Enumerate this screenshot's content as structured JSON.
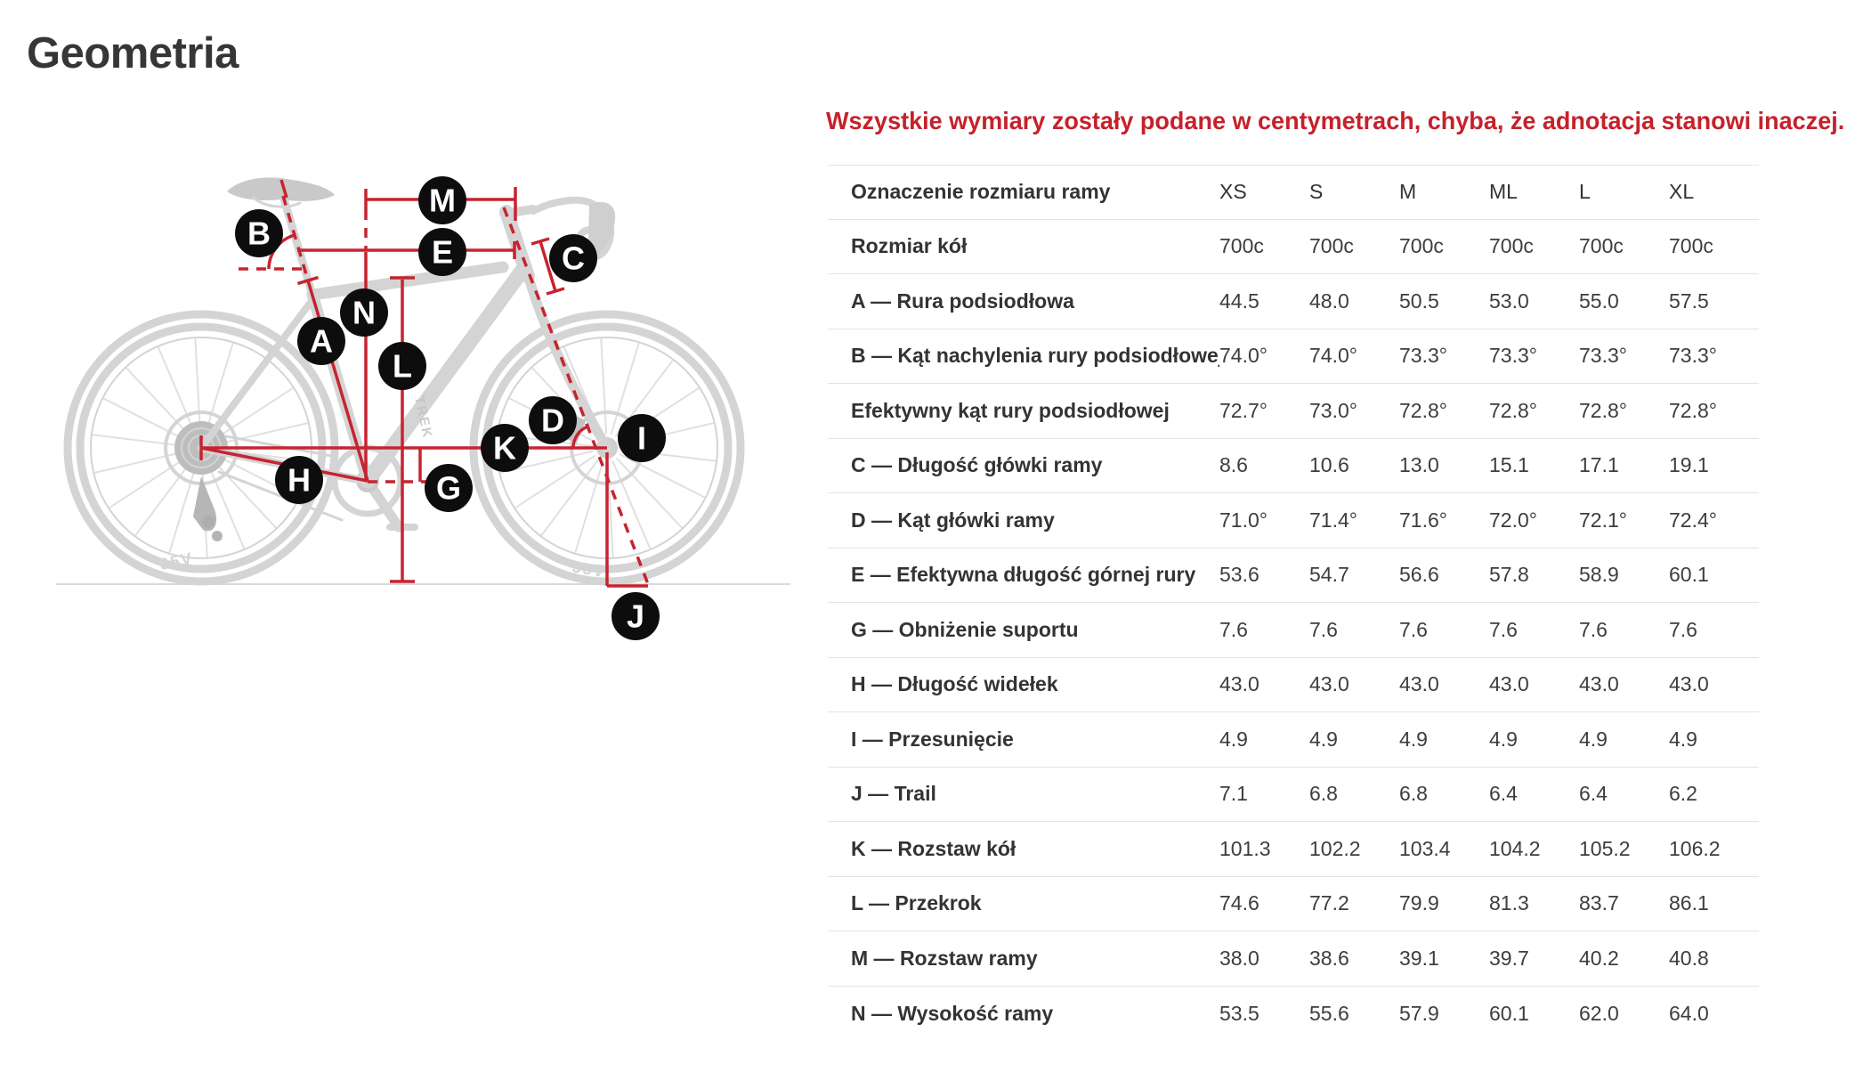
{
  "page": {
    "title": "Geometria"
  },
  "note": "Wszystkie wymiary zostały podane w centymetrach, chyba, że adnotacja stanowi inaczej.",
  "table": {
    "header_label": "Oznaczenie rozmiaru ramy",
    "sizes": [
      "XS",
      "S",
      "M",
      "ML",
      "L",
      "XL"
    ],
    "rows": [
      {
        "label": "Rozmiar kół",
        "values": [
          "700c",
          "700c",
          "700c",
          "700c",
          "700c",
          "700c"
        ]
      },
      {
        "label": "A — Rura podsiodłowa",
        "values": [
          "44.5",
          "48.0",
          "50.5",
          "53.0",
          "55.0",
          "57.5"
        ]
      },
      {
        "label": "B — Kąt nachylenia rury podsiodłowej",
        "values": [
          "74.0°",
          "74.0°",
          "73.3°",
          "73.3°",
          "73.3°",
          "73.3°"
        ]
      },
      {
        "label": "Efektywny kąt rury podsiodłowej",
        "values": [
          "72.7°",
          "73.0°",
          "72.8°",
          "72.8°",
          "72.8°",
          "72.8°"
        ]
      },
      {
        "label": "C — Długość główki ramy",
        "values": [
          "8.6",
          "10.6",
          "13.0",
          "15.1",
          "17.1",
          "19.1"
        ]
      },
      {
        "label": "D — Kąt główki ramy",
        "values": [
          "71.0°",
          "71.4°",
          "71.6°",
          "72.0°",
          "72.1°",
          "72.4°"
        ]
      },
      {
        "label": "E — Efektywna długość górnej rury",
        "values": [
          "53.6",
          "54.7",
          "56.6",
          "57.8",
          "58.9",
          "60.1"
        ]
      },
      {
        "label": "G — Obniżenie suportu",
        "values": [
          "7.6",
          "7.6",
          "7.6",
          "7.6",
          "7.6",
          "7.6"
        ]
      },
      {
        "label": "H — Długość widełek",
        "values": [
          "43.0",
          "43.0",
          "43.0",
          "43.0",
          "43.0",
          "43.0"
        ]
      },
      {
        "label": "I — Przesunięcie",
        "values": [
          "4.9",
          "4.9",
          "4.9",
          "4.9",
          "4.9",
          "4.9"
        ]
      },
      {
        "label": "J — Trail",
        "values": [
          "7.1",
          "6.8",
          "6.8",
          "6.4",
          "6.4",
          "6.2"
        ]
      },
      {
        "label": "K — Rozstaw kół",
        "values": [
          "101.3",
          "102.2",
          "103.4",
          "104.2",
          "105.2",
          "106.2"
        ]
      },
      {
        "label": "L — Przekrok",
        "values": [
          "74.6",
          "77.2",
          "79.9",
          "81.3",
          "83.7",
          "86.1"
        ]
      },
      {
        "label": "M — Rozstaw ramy",
        "values": [
          "38.0",
          "38.6",
          "39.1",
          "39.7",
          "40.2",
          "40.8"
        ]
      },
      {
        "label": "N — Wysokość ramy",
        "values": [
          "53.5",
          "55.6",
          "57.9",
          "60.1",
          "62.0",
          "64.0"
        ]
      }
    ]
  },
  "diagram": {
    "markers": {
      "A": "A",
      "B": "B",
      "C": "C",
      "D": "D",
      "E": "E",
      "G": "G",
      "H": "H",
      "I": "I",
      "J": "J",
      "K": "K",
      "L": "L",
      "M": "M",
      "N": "N"
    },
    "bike_brand": "TREK",
    "rim_text": "35V"
  },
  "colors": {
    "accent_red": "#c6212b",
    "line_red": "#c62430",
    "title_text": "#363636",
    "table_border": "#e4e4e4"
  }
}
